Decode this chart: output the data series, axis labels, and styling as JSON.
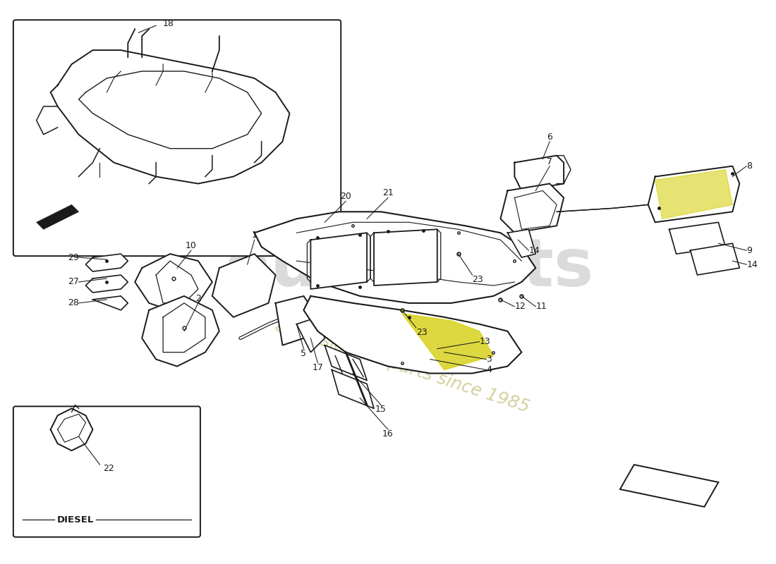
{
  "bg": "#ffffff",
  "lc": "#1a1a1a",
  "pc": "#1a1a1a",
  "hc": "#d4cc00",
  "wm1_color": "#d8d8d8",
  "wm2_color": "#ccc88a",
  "diesel_label": "DIESEL",
  "figsize": [
    11.0,
    8.0
  ],
  "dpi": 100,
  "xlim": [
    0,
    110
  ],
  "ylim": [
    0,
    80
  ]
}
